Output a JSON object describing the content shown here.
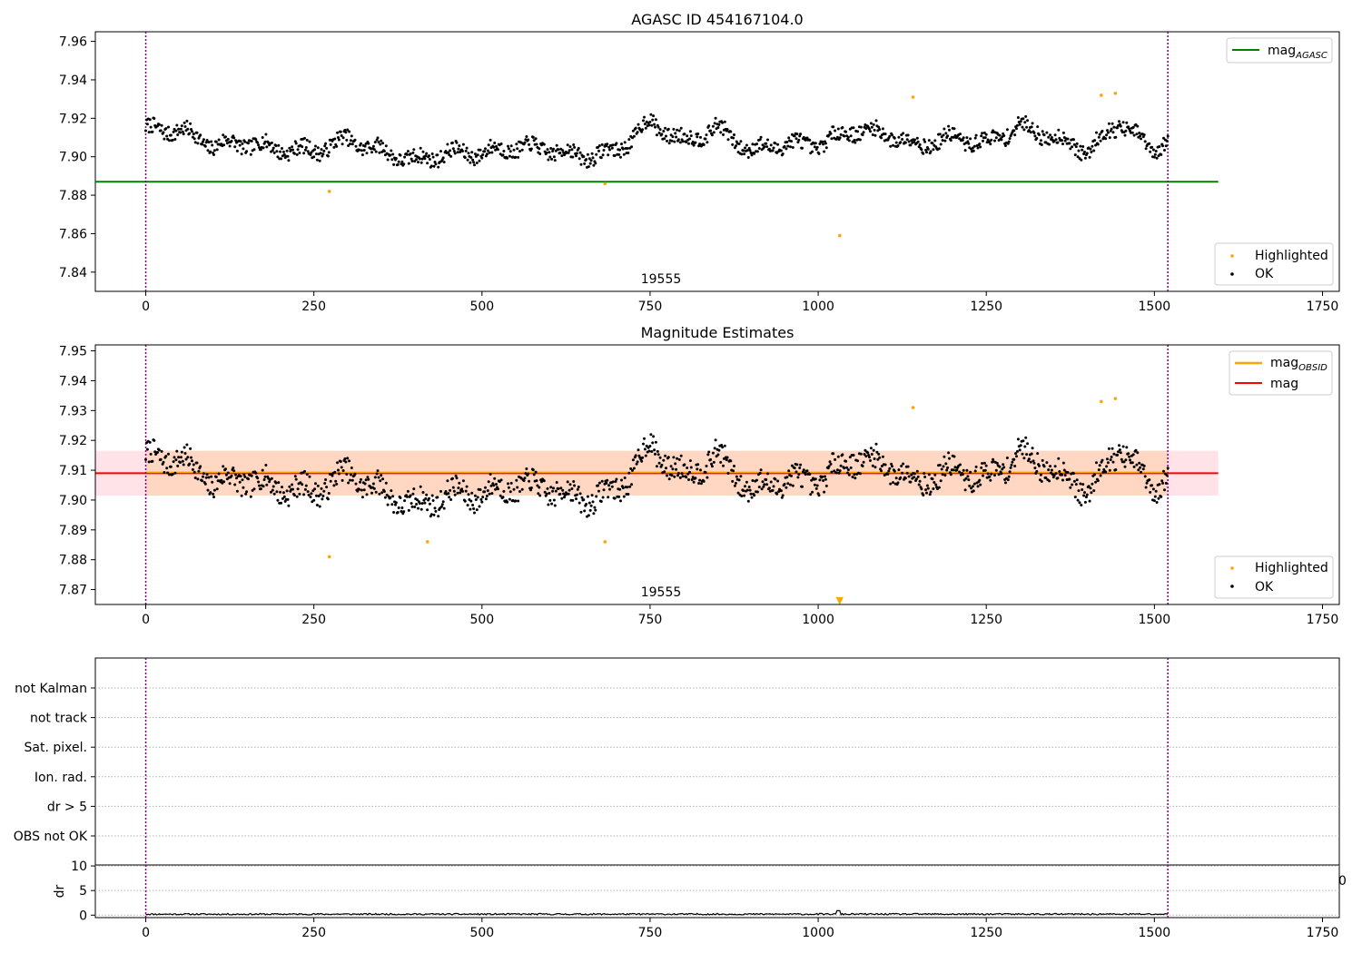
{
  "chart_data": [
    {
      "type": "scatter",
      "title": "AGASC ID 454167104.0",
      "xlim": [
        -75,
        1775
      ],
      "ylim": [
        7.83,
        7.965
      ],
      "x_ticks": [
        0,
        250,
        500,
        750,
        1000,
        1250,
        1500,
        1750
      ],
      "y_ticks": [
        7.84,
        7.86,
        7.88,
        7.9,
        7.92,
        7.94,
        7.96
      ],
      "y_tick_labels": [
        "7.84",
        "7.86",
        "7.88",
        "7.90",
        "7.92",
        "7.94",
        "7.96"
      ],
      "annotation": "19555",
      "obs_bounds": [
        0,
        1520
      ],
      "ok_range": [
        0,
        1520
      ],
      "series_ok_name": "OK",
      "series_highlight_name": "Highlighted",
      "reference_line": {
        "name": "magAGASC",
        "name_main": "mag",
        "name_sub": "AGASC",
        "y": 7.887,
        "x": [
          -75,
          1595
        ],
        "color": "#008000"
      },
      "band": null,
      "highlighted_points": [
        {
          "x": 273,
          "y": 7.882
        },
        {
          "x": 683,
          "y": 7.886
        },
        {
          "x": 1032,
          "y": 7.859
        },
        {
          "x": 1141,
          "y": 7.931
        },
        {
          "x": 1421,
          "y": 7.932
        },
        {
          "x": 1442,
          "y": 7.933
        }
      ],
      "ok_trend": [
        [
          0,
          7.914
        ],
        [
          50,
          7.914
        ],
        [
          100,
          7.906
        ],
        [
          150,
          7.907
        ],
        [
          200,
          7.904
        ],
        [
          250,
          7.903
        ],
        [
          300,
          7.909
        ],
        [
          350,
          7.903
        ],
        [
          400,
          7.898
        ],
        [
          450,
          7.902
        ],
        [
          500,
          7.902
        ],
        [
          550,
          7.905
        ],
        [
          600,
          7.904
        ],
        [
          650,
          7.9
        ],
        [
          700,
          7.903
        ],
        [
          750,
          7.918
        ],
        [
          800,
          7.908
        ],
        [
          850,
          7.915
        ],
        [
          900,
          7.903
        ],
        [
          950,
          7.907
        ],
        [
          1000,
          7.906
        ],
        [
          1050,
          7.914
        ],
        [
          1100,
          7.912
        ],
        [
          1150,
          7.906
        ],
        [
          1200,
          7.91
        ],
        [
          1250,
          7.907
        ],
        [
          1300,
          7.916
        ],
        [
          1350,
          7.91
        ],
        [
          1400,
          7.903
        ],
        [
          1450,
          7.918
        ],
        [
          1500,
          7.902
        ],
        [
          1520,
          7.91
        ]
      ],
      "ok_noise": 0.005,
      "legend_upper_loc": "upper right",
      "legend_lower_loc": "lower right"
    },
    {
      "type": "scatter",
      "title": "Magnitude Estimates",
      "xlim": [
        -75,
        1775
      ],
      "ylim": [
        7.865,
        7.952
      ],
      "x_ticks": [
        0,
        250,
        500,
        750,
        1000,
        1250,
        1500,
        1750
      ],
      "y_ticks": [
        7.87,
        7.88,
        7.89,
        7.9,
        7.91,
        7.92,
        7.93,
        7.94,
        7.95
      ],
      "y_tick_labels": [
        "7.87",
        "7.88",
        "7.89",
        "7.90",
        "7.91",
        "7.92",
        "7.93",
        "7.94",
        "7.95"
      ],
      "annotation": "19555",
      "obs_bounds": [
        0,
        1520
      ],
      "ok_range": [
        0,
        1520
      ],
      "series_ok_name": "OK",
      "series_highlight_name": "Highlighted",
      "reference_line": {
        "name": "mag",
        "name_main": "mag",
        "name_sub": "",
        "y": 7.909,
        "x": [
          -75,
          1595
        ],
        "color": "#ff0000"
      },
      "obsid_line": {
        "name": "magOBSID",
        "name_main": "mag",
        "name_sub": "OBSID",
        "y": 7.909,
        "x": [
          0,
          1520
        ],
        "color": "#ffa500"
      },
      "band": {
        "y_low": 7.9015,
        "y_high": 7.9165,
        "x": [
          -75,
          1595
        ],
        "color": "#ffc0cb",
        "inner_x": [
          0,
          1520
        ],
        "inner_color": "#ffd2b3"
      },
      "highlighted_points": [
        {
          "x": 273,
          "y": 7.881
        },
        {
          "x": 419,
          "y": 7.886
        },
        {
          "x": 683,
          "y": 7.886
        },
        {
          "x": 1141,
          "y": 7.931
        },
        {
          "x": 1421,
          "y": 7.933
        },
        {
          "x": 1442,
          "y": 7.934
        }
      ],
      "offscale_marker": {
        "x": 1032,
        "label": "▼"
      },
      "ok_trend": [
        [
          0,
          7.914
        ],
        [
          50,
          7.914
        ],
        [
          100,
          7.906
        ],
        [
          150,
          7.907
        ],
        [
          200,
          7.904
        ],
        [
          250,
          7.903
        ],
        [
          300,
          7.909
        ],
        [
          350,
          7.903
        ],
        [
          400,
          7.898
        ],
        [
          450,
          7.902
        ],
        [
          500,
          7.902
        ],
        [
          550,
          7.905
        ],
        [
          600,
          7.904
        ],
        [
          650,
          7.9
        ],
        [
          700,
          7.903
        ],
        [
          750,
          7.918
        ],
        [
          800,
          7.908
        ],
        [
          850,
          7.915
        ],
        [
          900,
          7.903
        ],
        [
          950,
          7.907
        ],
        [
          1000,
          7.906
        ],
        [
          1050,
          7.914
        ],
        [
          1100,
          7.912
        ],
        [
          1150,
          7.906
        ],
        [
          1200,
          7.91
        ],
        [
          1250,
          7.907
        ],
        [
          1300,
          7.916
        ],
        [
          1350,
          7.91
        ],
        [
          1400,
          7.903
        ],
        [
          1450,
          7.918
        ],
        [
          1500,
          7.902
        ],
        [
          1520,
          7.91
        ]
      ],
      "ok_noise": 0.005,
      "legend_upper_loc": "upper right",
      "legend_lower_loc": "lower right"
    },
    {
      "type": "table",
      "title": "",
      "flags": [
        "not Kalman",
        "not track",
        "Sat. pixel.",
        "Ion. rad.",
        "dr > 5",
        "OBS not OK"
      ],
      "flag_values": [
        0,
        0,
        0,
        0,
        0,
        0
      ],
      "obs_bounds": [
        0,
        1520
      ],
      "xlim": [
        -75,
        1775
      ],
      "grid": true
    },
    {
      "type": "line",
      "title": "",
      "ylabel": "dr",
      "xlim": [
        -75,
        1775
      ],
      "ylim": [
        -0.5,
        10.2
      ],
      "x_ticks": [
        0,
        250,
        500,
        750,
        1000,
        1250,
        1500,
        1750
      ],
      "y_ticks": [
        0,
        5,
        10
      ],
      "y_tick_labels": [
        "0",
        "5",
        "10"
      ],
      "x_range": [
        0,
        1520
      ],
      "dr_baseline": 0.2,
      "dr_noise": 0.15,
      "dr_peak": {
        "x": 1030,
        "y": 0.9
      },
      "obs_bounds": [
        0,
        1520
      ],
      "grid": true,
      "edge_tick_text": "0"
    }
  ]
}
